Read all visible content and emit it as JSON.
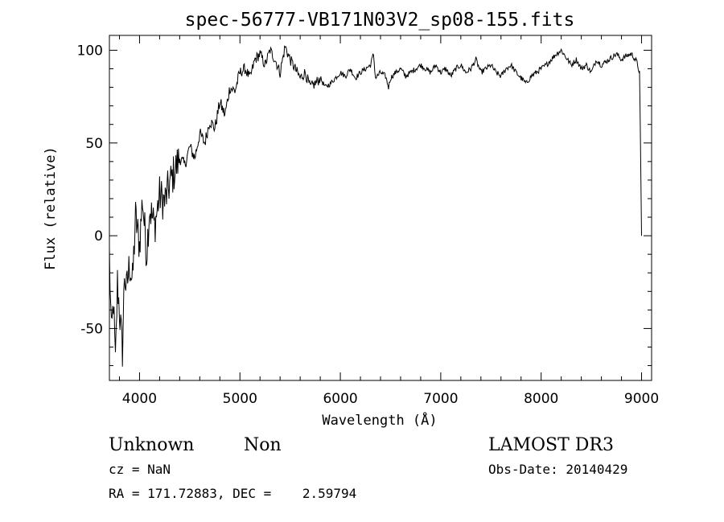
{
  "chart_data": {
    "type": "line",
    "title": "spec-56777-VB171N03V2_sp08-155.fits",
    "xlabel": "Wavelength (Å)",
    "ylabel": "Flux (relative)",
    "xlim": [
      3700,
      9100
    ],
    "ylim": [
      -78,
      108
    ],
    "x_ticks": [
      4000,
      5000,
      6000,
      7000,
      8000,
      9000
    ],
    "x_tick_labels": [
      "4000",
      "5000",
      "6000",
      "7000",
      "8000",
      "9000"
    ],
    "y_ticks": [
      -50,
      0,
      50,
      100
    ],
    "y_tick_labels": [
      "-50",
      "0",
      "50",
      "100"
    ],
    "grid": false,
    "line_color": "#000000",
    "series": [
      {
        "x": [
          3700,
          3720,
          3740,
          3760,
          3780,
          3800,
          3830,
          3850,
          3870,
          3900,
          3930,
          3960,
          4000,
          4030,
          4070,
          4100,
          4150,
          4200,
          4250,
          4300,
          4350,
          4400,
          4450,
          4500,
          4550,
          4600,
          4650,
          4700,
          4750,
          4800,
          4850,
          4900,
          4950,
          5000,
          5050,
          5100,
          5150,
          5200,
          5250,
          5300,
          5350,
          5400,
          5450,
          5500,
          5550,
          5600,
          5650,
          5700,
          5750,
          5800,
          5850,
          5900,
          5950,
          6000,
          6050,
          6100,
          6150,
          6200,
          6250,
          6300,
          6330,
          6350,
          6400,
          6450,
          6480,
          6500,
          6550,
          6600,
          6650,
          6700,
          6750,
          6800,
          6850,
          6900,
          6950,
          7000,
          7050,
          7100,
          7150,
          7200,
          7250,
          7300,
          7350,
          7400,
          7450,
          7500,
          7550,
          7600,
          7650,
          7700,
          7750,
          7800,
          7850,
          7900,
          7950,
          8000,
          8050,
          8100,
          8150,
          8200,
          8250,
          8300,
          8350,
          8400,
          8450,
          8500,
          8550,
          8600,
          8650,
          8700,
          8750,
          8800,
          8850,
          8900,
          8950,
          8980,
          9000
        ],
        "y": [
          -10,
          -55,
          -35,
          -70,
          -25,
          -40,
          -62,
          -20,
          -30,
          -15,
          -25,
          10,
          -5,
          20,
          -10,
          15,
          5,
          22,
          18,
          28,
          35,
          42,
          38,
          48,
          42,
          55,
          50,
          62,
          58,
          72,
          65,
          80,
          78,
          88,
          90,
          85,
          95,
          98,
          92,
          100,
          95,
          88,
          102,
          95,
          90,
          85,
          88,
          80,
          82,
          85,
          80,
          82,
          85,
          88,
          86,
          90,
          85,
          88,
          90,
          92,
          98,
          85,
          88,
          86,
          80,
          85,
          88,
          90,
          86,
          88,
          90,
          92,
          90,
          88,
          92,
          88,
          90,
          86,
          90,
          92,
          88,
          90,
          95,
          88,
          90,
          92,
          88,
          86,
          90,
          92,
          88,
          85,
          82,
          86,
          88,
          90,
          92,
          95,
          98,
          100,
          96,
          92,
          95,
          90,
          92,
          88,
          95,
          92,
          94,
          96,
          98,
          95,
          97,
          98,
          94,
          88,
          0
        ]
      }
    ]
  },
  "footer": {
    "left_line1_a": "Unknown",
    "left_line1_b": "Non",
    "left_line2": "cz = NaN",
    "left_line3": "RA = 171.72883, DEC =    2.59794",
    "right_line1": "LAMOST DR3",
    "right_line2": "Obs-Date: 20140429"
  }
}
